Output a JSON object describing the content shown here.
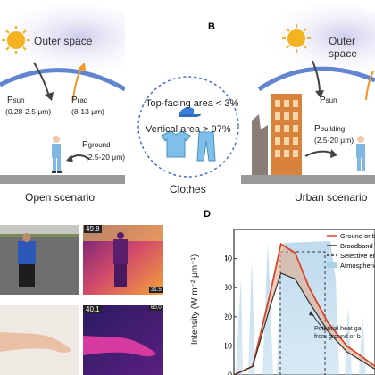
{
  "panel_labels": {
    "b": "B",
    "d": "D"
  },
  "open_scenario": {
    "space_label": "Outer space",
    "p_sun": "P",
    "p_sun_sub": "sun",
    "p_sun_range": "(0.28-2.5 μm)",
    "p_rad": "P",
    "p_rad_sub": "rad",
    "p_rad_range": "(8-13 μm)",
    "p_ground": "P",
    "p_ground_sub": "ground",
    "p_ground_range": "(2.5-20 μm)",
    "caption": "Open scenario"
  },
  "clothes": {
    "top_facing": "Top-facing area < 3%",
    "vertical": "Vertical area > 97%",
    "caption": "Clothes"
  },
  "urban_scenario": {
    "space_label": "Outer space",
    "p_sun": "P",
    "p_sun_sub": "sun",
    "p_building": "P",
    "p_building_sub": "building",
    "p_building_range": "(2.5-20 μm)",
    "caption": "Urban scenario"
  },
  "thermal": {
    "temp_top_max": "49.8",
    "temp_top_min": "31.5",
    "temp_bottom_max": "40.1",
    "temp_bottom_min": "60.0"
  },
  "chart_d": {
    "ylabel": "Intensity (W m⁻² μm⁻¹)",
    "yticks": [
      "0",
      "10",
      "20",
      "30",
      "40"
    ],
    "legend": [
      {
        "label": "Ground or bui",
        "color": "#d9452b",
        "style": "solid"
      },
      {
        "label": "Broadband em",
        "color": "#333333",
        "style": "solid"
      },
      {
        "label": "Selective em",
        "color": "#333333",
        "style": "dashed"
      },
      {
        "label": "Atmospheric",
        "color": "#a9cfe8",
        "style": "fill"
      }
    ],
    "annotation": [
      "Potential heat ga",
      "from ground or b"
    ]
  },
  "chart_data": {
    "type": "line",
    "ylabel": "Intensity (W m⁻² μm⁻¹)",
    "ylim": [
      0,
      50
    ],
    "series": [
      {
        "name": "Ground or bui",
        "x": [
          0,
          4,
          8,
          10,
          13,
          16,
          20,
          24,
          30
        ],
        "y": [
          0,
          3,
          30,
          45,
          42,
          30,
          18,
          10,
          3
        ]
      },
      {
        "name": "Broadband em",
        "x": [
          0,
          4,
          8,
          10,
          13,
          16,
          20,
          24,
          30
        ],
        "y": [
          0,
          3,
          25,
          35,
          33,
          25,
          15,
          8,
          2
        ]
      }
    ]
  }
}
